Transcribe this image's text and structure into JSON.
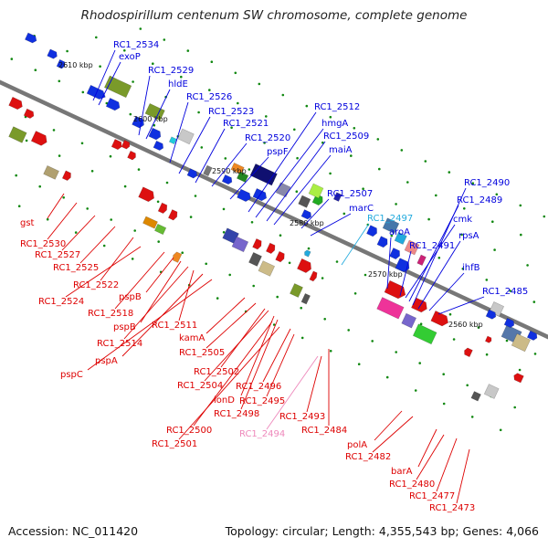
{
  "title": "Rhodospirillum centenum SW chromosome, complete genome",
  "footer": {
    "accession": "Accession: NC_011420",
    "summary": "Topology: circular; Length: 4,355,543 bp; Genes: 4,066"
  },
  "kbp_ticks": [
    "2610 kbp",
    "2600 kbp",
    "2590 kbp",
    "2580 kbp",
    "2570 kbp",
    "2560 kbp"
  ],
  "genes_top": [
    "RC1_2534",
    "exoP",
    "RC1_2529",
    "hldE",
    "RC1_2526",
    "RC1_2523",
    "RC1_2521",
    "RC1_2520",
    "pspF",
    "RC1_2512",
    "hmgA",
    "RC1_2509",
    "maiA",
    "RC1_2507",
    "marC",
    "RC1_2497",
    "aroA",
    "RC1_2491",
    "cmk",
    "RC1_2489",
    "RC1_2490",
    "rpsA",
    "ihfB",
    "RC1_2485"
  ],
  "genes_bottom": [
    "gst",
    "RC1_2530",
    "RC1_2527",
    "RC1_2525",
    "RC1_2522",
    "RC1_2524",
    "RC1_2518",
    "pspB",
    "pspB",
    "RC1_2511",
    "RC1_2514",
    "pspA",
    "pspC",
    "kamA",
    "RC1_2505",
    "RC1_2502",
    "RC1_2504",
    "RC1_2496",
    "RC1_2495",
    "lonD",
    "RC1_2498",
    "RC1_2500",
    "RC1_2501",
    "RC1_2494",
    "RC1_2493",
    "RC1_2484",
    "polA",
    "RC1_2482",
    "barA",
    "RC1_2480",
    "RC1_2477",
    "RC1_2473"
  ],
  "colors": {
    "forward_strand": "#0000dd",
    "reverse_strand": "#dd0000",
    "highlight_cyan": "#22aadd",
    "highlight_pink": "#ee88bb",
    "backbone": "#777777",
    "tick": "#118811"
  }
}
